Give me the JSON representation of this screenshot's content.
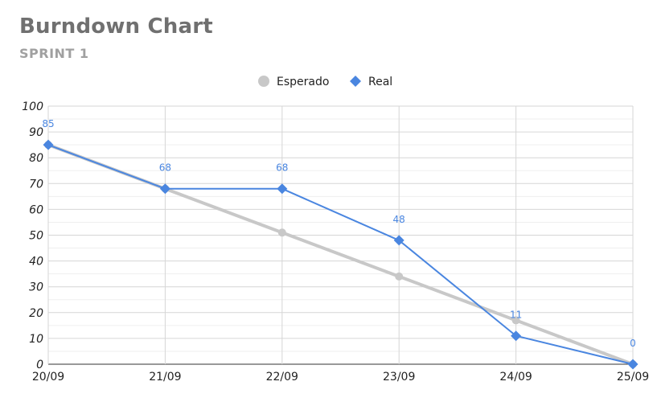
{
  "chart": {
    "title": "Burndown Chart",
    "subtitle": "SPRINT 1"
  },
  "chart_data": {
    "type": "line",
    "title": "Burndown Chart",
    "subtitle": "SPRINT 1",
    "categories": [
      "20/09",
      "21/09",
      "22/09",
      "23/09",
      "24/09",
      "25/09"
    ],
    "series": [
      {
        "name": "Esperado",
        "values": [
          85,
          68,
          51,
          34,
          17,
          0
        ],
        "color": "#c8c8c8",
        "marker": "circle",
        "data_labels": false
      },
      {
        "name": "Real",
        "values": [
          85,
          68,
          68,
          48,
          11,
          0
        ],
        "color": "#4a86e0",
        "marker": "diamond",
        "data_labels": true
      }
    ],
    "ylim": [
      0,
      100
    ],
    "yticks": [
      0,
      10,
      20,
      30,
      40,
      50,
      60,
      70,
      80,
      90,
      100
    ],
    "grid": true,
    "legend": "top-center",
    "xlabel": "",
    "ylabel": ""
  }
}
